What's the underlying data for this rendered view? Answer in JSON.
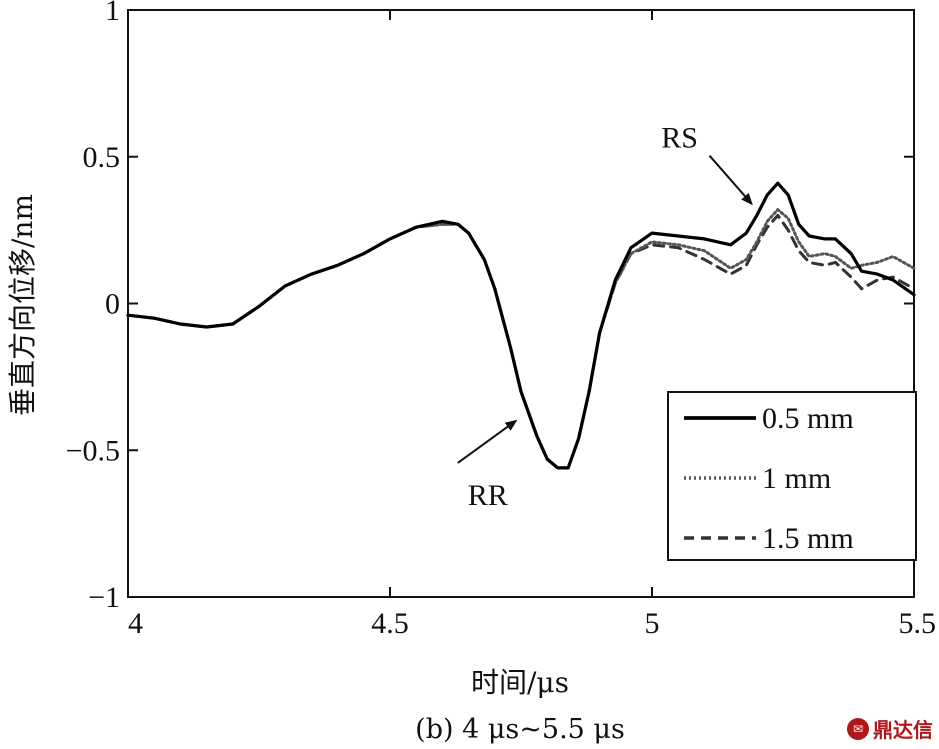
{
  "chart_data": {
    "type": "line",
    "title": "",
    "caption": "(b) 4 μs~5.5 μs",
    "xlabel": "时间/μs",
    "ylabel": "垂直方向位移/nm",
    "xlim": [
      4,
      5.5
    ],
    "ylim": [
      -1,
      1
    ],
    "x_ticks": [
      4,
      4.5,
      5,
      5.5
    ],
    "x_tick_labels": [
      "4",
      "4.5",
      "5",
      "5.5"
    ],
    "y_ticks": [
      -1,
      -0.5,
      0,
      0.5,
      1
    ],
    "y_tick_labels": [
      "−1",
      "−0.5",
      "0",
      "0.5",
      "1"
    ],
    "grid": false,
    "legend_position": "bottom-right",
    "series": [
      {
        "name": "0.5 mm",
        "style": "solid",
        "color": "#000000",
        "x": [
          4.0,
          4.05,
          4.1,
          4.15,
          4.2,
          4.25,
          4.3,
          4.35,
          4.4,
          4.45,
          4.5,
          4.55,
          4.6,
          4.63,
          4.65,
          4.68,
          4.7,
          4.73,
          4.75,
          4.78,
          4.8,
          4.82,
          4.84,
          4.86,
          4.88,
          4.9,
          4.93,
          4.96,
          5.0,
          5.05,
          5.1,
          5.15,
          5.18,
          5.2,
          5.22,
          5.24,
          5.26,
          5.28,
          5.3,
          5.33,
          5.35,
          5.38,
          5.4,
          5.43,
          5.46,
          5.5
        ],
        "y": [
          -0.04,
          -0.05,
          -0.07,
          -0.08,
          -0.07,
          -0.01,
          0.06,
          0.1,
          0.13,
          0.17,
          0.22,
          0.26,
          0.28,
          0.27,
          0.24,
          0.15,
          0.05,
          -0.15,
          -0.3,
          -0.45,
          -0.53,
          -0.56,
          -0.56,
          -0.46,
          -0.3,
          -0.1,
          0.08,
          0.19,
          0.24,
          0.23,
          0.22,
          0.2,
          0.24,
          0.3,
          0.37,
          0.41,
          0.37,
          0.27,
          0.23,
          0.22,
          0.22,
          0.17,
          0.11,
          0.1,
          0.08,
          0.03
        ]
      },
      {
        "name": "1 mm",
        "style": "dotted",
        "color": "#555555",
        "x": [
          4.0,
          4.05,
          4.1,
          4.15,
          4.2,
          4.25,
          4.3,
          4.35,
          4.4,
          4.45,
          4.5,
          4.55,
          4.6,
          4.63,
          4.65,
          4.68,
          4.7,
          4.73,
          4.75,
          4.78,
          4.8,
          4.82,
          4.84,
          4.86,
          4.88,
          4.9,
          4.93,
          4.96,
          5.0,
          5.05,
          5.1,
          5.15,
          5.18,
          5.2,
          5.22,
          5.24,
          5.26,
          5.28,
          5.3,
          5.33,
          5.35,
          5.38,
          5.4,
          5.43,
          5.46,
          5.5
        ],
        "y": [
          -0.04,
          -0.05,
          -0.07,
          -0.08,
          -0.07,
          -0.01,
          0.06,
          0.1,
          0.13,
          0.17,
          0.22,
          0.26,
          0.27,
          0.27,
          0.24,
          0.15,
          0.05,
          -0.15,
          -0.3,
          -0.45,
          -0.53,
          -0.56,
          -0.56,
          -0.46,
          -0.3,
          -0.1,
          0.07,
          0.17,
          0.21,
          0.2,
          0.18,
          0.12,
          0.15,
          0.21,
          0.28,
          0.32,
          0.29,
          0.21,
          0.16,
          0.17,
          0.16,
          0.12,
          0.13,
          0.14,
          0.16,
          0.12
        ]
      },
      {
        "name": "1.5 mm",
        "style": "dashed",
        "color": "#333333",
        "x": [
          4.0,
          4.05,
          4.1,
          4.15,
          4.2,
          4.25,
          4.3,
          4.35,
          4.4,
          4.45,
          4.5,
          4.55,
          4.6,
          4.63,
          4.65,
          4.68,
          4.7,
          4.73,
          4.75,
          4.78,
          4.8,
          4.82,
          4.84,
          4.86,
          4.88,
          4.9,
          4.93,
          4.96,
          5.0,
          5.05,
          5.1,
          5.15,
          5.18,
          5.2,
          5.22,
          5.24,
          5.26,
          5.28,
          5.3,
          5.33,
          5.35,
          5.38,
          5.4,
          5.43,
          5.46,
          5.5
        ],
        "y": [
          -0.04,
          -0.05,
          -0.07,
          -0.08,
          -0.07,
          -0.01,
          0.06,
          0.1,
          0.13,
          0.17,
          0.22,
          0.26,
          0.27,
          0.27,
          0.24,
          0.15,
          0.05,
          -0.15,
          -0.3,
          -0.45,
          -0.53,
          -0.56,
          -0.56,
          -0.46,
          -0.3,
          -0.1,
          0.07,
          0.17,
          0.2,
          0.19,
          0.15,
          0.1,
          0.13,
          0.2,
          0.26,
          0.3,
          0.25,
          0.18,
          0.14,
          0.13,
          0.14,
          0.09,
          0.05,
          0.08,
          0.09,
          0.05
        ]
      }
    ],
    "annotations": [
      {
        "text": "RS",
        "points_to": {
          "x": 5.19,
          "y": 0.34
        }
      },
      {
        "text": "RR",
        "points_to": {
          "x": 4.74,
          "y": -0.4
        }
      }
    ]
  },
  "watermark": {
    "icon": "logo-badge-icon",
    "text": "鼎达信"
  }
}
